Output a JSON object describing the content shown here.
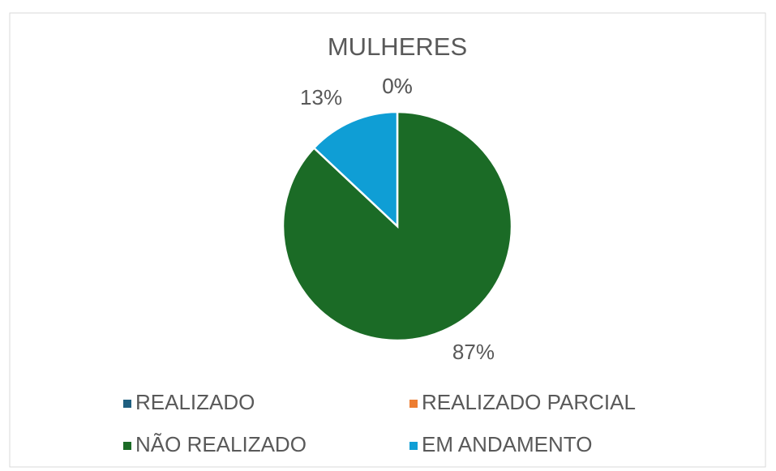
{
  "chart_data": {
    "type": "pie",
    "title": "MULHERES",
    "categories": [
      "REALIZADO",
      "REALIZADO PARCIAL",
      "NÃO REALIZADO",
      "EM ANDAMENTO"
    ],
    "values": [
      0,
      0,
      87,
      13
    ],
    "value_labels": [
      "0%",
      "0%",
      "87%",
      "13%"
    ],
    "colors": [
      "#1f5f80",
      "#ed7d31",
      "#1b6b26",
      "#0f9ed5"
    ],
    "legend": "bottom"
  }
}
